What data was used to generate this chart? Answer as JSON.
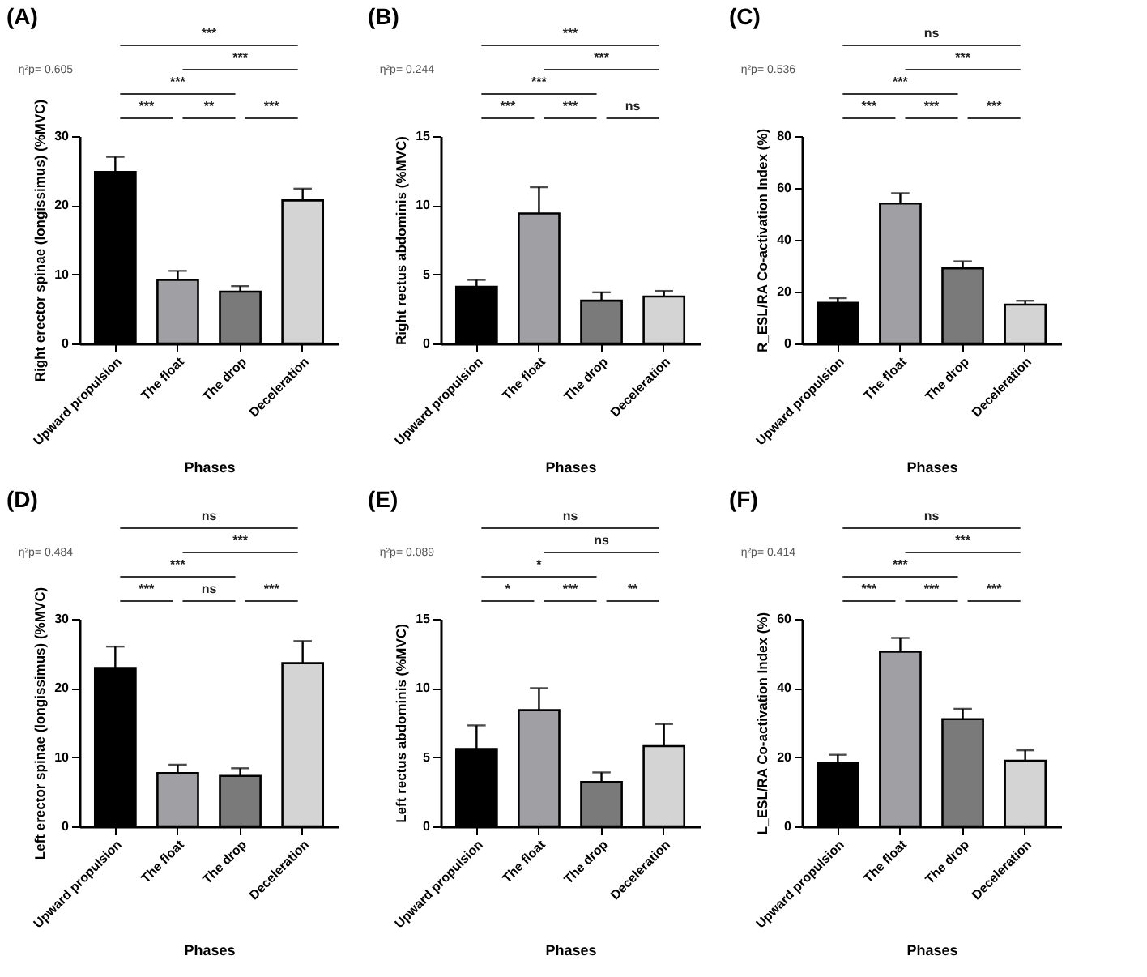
{
  "chart_data": [
    {
      "type": "bar",
      "title": "(A)",
      "xlabel": "Phases",
      "ylabel": "Right erector spinae (longissimus) (%MVC)",
      "categories": [
        "Upward propulsion",
        "The float",
        "The drop",
        "Deceleration"
      ],
      "values": [
        24.8,
        9.2,
        7.5,
        20.7
      ],
      "errors": [
        [
          24.8,
          27.0
        ],
        [
          9.2,
          10.5
        ],
        [
          7.5,
          8.3
        ],
        [
          20.7,
          22.4
        ]
      ],
      "colors": [
        "#000000",
        "#a0a0a4",
        "#7a7a7a",
        "#d4d4d4"
      ],
      "ylim": [
        0,
        30
      ],
      "yticks": [
        0,
        10,
        20,
        30
      ],
      "annotations": [
        "η²p= 0.605",
        "***",
        "***",
        "***",
        "***",
        "**",
        "***"
      ]
    },
    {
      "type": "bar",
      "title": "(B)",
      "xlabel": "Phases",
      "ylabel": "Right rectus abdominis (%MVC)",
      "categories": [
        "Upward propulsion",
        "The float",
        "The drop",
        "Deceleration"
      ],
      "values": [
        4.1,
        9.4,
        3.1,
        3.4
      ],
      "errors": [
        [
          4.1,
          4.6
        ],
        [
          9.4,
          11.3
        ],
        [
          3.1,
          3.7
        ],
        [
          3.4,
          3.8
        ]
      ],
      "colors": [
        "#000000",
        "#a0a0a4",
        "#7a7a7a",
        "#d4d4d4"
      ],
      "ylim": [
        0,
        15
      ],
      "yticks": [
        0,
        5,
        10,
        15
      ],
      "annotations": [
        "η²p= 0.244",
        "***",
        "***",
        "***",
        "***",
        "***",
        "ns"
      ]
    },
    {
      "type": "bar",
      "title": "(C)",
      "xlabel": "Phases",
      "ylabel": "R_ESL/RA Co-activation Index (%)",
      "categories": [
        "Upward propulsion",
        "The float",
        "The drop",
        "Deceleration"
      ],
      "values": [
        15.7,
        54,
        29,
        15
      ],
      "errors": [
        [
          15.7,
          17.5
        ],
        [
          54,
          58
        ],
        [
          29,
          31.7
        ],
        [
          15,
          16.5
        ]
      ],
      "colors": [
        "#000000",
        "#a0a0a4",
        "#7a7a7a",
        "#d4d4d4"
      ],
      "ylim": [
        0,
        80
      ],
      "yticks": [
        0,
        20,
        40,
        60,
        80
      ],
      "annotations": [
        "η²p= 0.536",
        "ns",
        "***",
        "***",
        "***",
        "***",
        "***"
      ]
    },
    {
      "type": "bar",
      "title": "(D)",
      "xlabel": "Phases",
      "ylabel": "Left erector spinae (longissimus) (%MVC)",
      "categories": [
        "Upward propulsion",
        "The float",
        "The drop",
        "Deceleration"
      ],
      "values": [
        22.9,
        7.7,
        7.3,
        23.6
      ],
      "errors": [
        [
          22.9,
          26.0
        ],
        [
          7.7,
          8.9
        ],
        [
          7.3,
          8.4
        ],
        [
          23.6,
          26.8
        ]
      ],
      "colors": [
        "#000000",
        "#a0a0a4",
        "#7a7a7a",
        "#d4d4d4"
      ],
      "ylim": [
        0,
        30
      ],
      "yticks": [
        0,
        10,
        20,
        30
      ],
      "annotations": [
        "η²p= 0.484",
        "ns",
        "***",
        "***",
        "***",
        "ns",
        "***"
      ]
    },
    {
      "type": "bar",
      "title": "(E)",
      "xlabel": "Phases",
      "ylabel": "Left rectus abdominis (%MVC)",
      "categories": [
        "Upward propulsion",
        "The float",
        "The drop",
        "Deceleration"
      ],
      "values": [
        5.6,
        8.4,
        3.2,
        5.8
      ],
      "errors": [
        [
          5.6,
          7.3
        ],
        [
          8.4,
          10.0
        ],
        [
          3.2,
          3.9
        ],
        [
          5.8,
          7.4
        ]
      ],
      "colors": [
        "#000000",
        "#a0a0a4",
        "#7a7a7a",
        "#d4d4d4"
      ],
      "ylim": [
        0,
        15
      ],
      "yticks": [
        0,
        5,
        10,
        15
      ],
      "annotations": [
        "η²p= 0.089",
        "ns",
        "ns",
        "*",
        "*",
        "***",
        "**"
      ]
    },
    {
      "type": "bar",
      "title": "(F)",
      "xlabel": "Phases",
      "ylabel": "L_ESL/RA Co-activation Index (%)",
      "categories": [
        "Upward propulsion",
        "The float",
        "The drop",
        "Deceleration"
      ],
      "values": [
        18.3,
        50.5,
        31,
        19
      ],
      "errors": [
        [
          18.3,
          20.7
        ],
        [
          50.5,
          54.5
        ],
        [
          31,
          34
        ],
        [
          19,
          22
        ]
      ],
      "colors": [
        "#000000",
        "#a0a0a4",
        "#7a7a7a",
        "#d4d4d4"
      ],
      "ylim": [
        0,
        60
      ],
      "yticks": [
        0,
        20,
        40,
        60
      ],
      "annotations": [
        "η²p= 0.414",
        "ns",
        "***",
        "***",
        "***",
        "***",
        "***"
      ]
    }
  ]
}
